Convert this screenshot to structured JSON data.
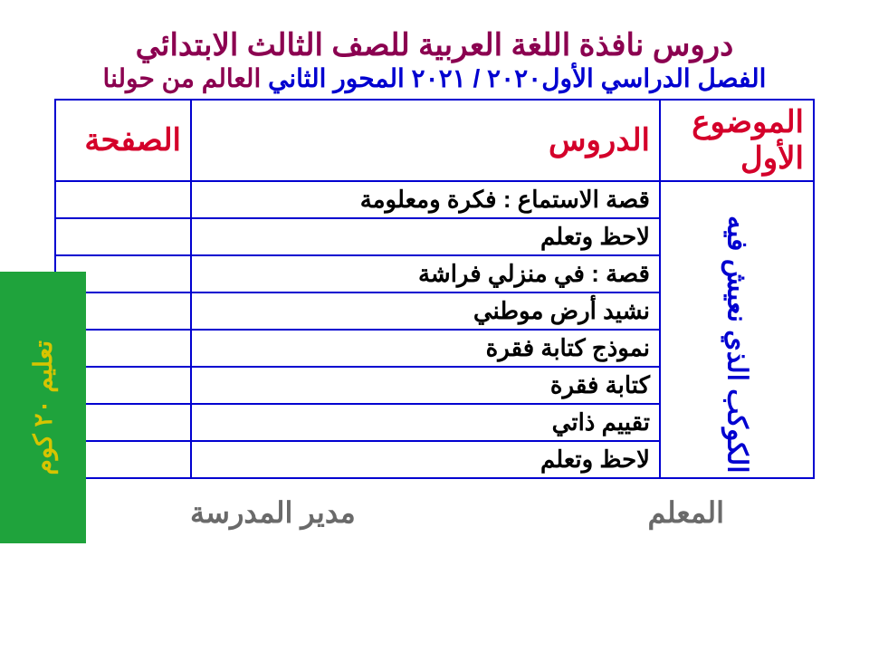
{
  "title": {
    "main": "دروس نافذة اللغة العربية للصف الثالث الابتدائي",
    "main_color": "#8b0050",
    "main_fontsize": 34,
    "sub_part1": "الفصل الدراسي الأول٢٠٢٠ / ٢٠٢١ المحور الثاني",
    "sub_part2": " العالم من حولنا",
    "sub_fontsize": 28
  },
  "table": {
    "border_color": "#0000d0",
    "header_color": "#d4002a",
    "header_fontsize": 34,
    "columns": {
      "topic": "الموضوع الأول",
      "lessons": "الدروس",
      "page": "الصفحة"
    },
    "topic_rowspan_text": "الكوكب الذي نعيش فيه",
    "topic_color": "#0000d0",
    "topic_fontsize": 30,
    "row_fontsize": 26,
    "rows": [
      {
        "lesson": "قصة الاستماع : فكرة ومعلومة",
        "page": ""
      },
      {
        "lesson": "لاحظ وتعلم",
        "page": ""
      },
      {
        "lesson": "قصة :  في منزلي فراشة",
        "page": ""
      },
      {
        "lesson": "نشيد أرض موطني",
        "page": ""
      },
      {
        "lesson": "نموذج كتابة فقرة",
        "page": ""
      },
      {
        "lesson": "كتابة فقرة",
        "page": ""
      },
      {
        "lesson": "تقييم ذاتي",
        "page": ""
      },
      {
        "lesson": "لاحظ وتعلم",
        "page": ""
      }
    ]
  },
  "footer": {
    "teacher": "المعلم",
    "principal": "مدير المدرسة",
    "color": "#6a6a6a",
    "fontsize": 32
  },
  "badge": {
    "text": "تعليم ٢٠ كوم",
    "bg": "#1fa33c",
    "color": "#d6c400",
    "fontsize": 28
  }
}
